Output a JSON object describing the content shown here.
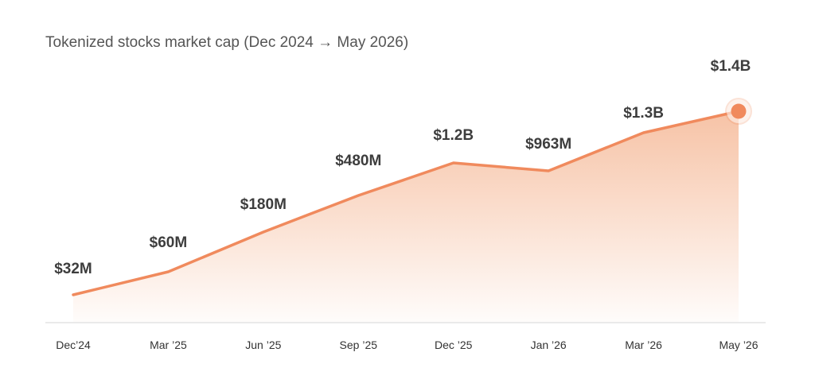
{
  "chart_data": {
    "type": "area",
    "title": "Tokenized stocks market cap (Dec 2024 → May 2026)",
    "xlabel": "",
    "ylabel": "",
    "categories": [
      "Dec’24",
      "Mar ’25",
      "Jun ’25",
      "Sep ’25",
      "Dec ’25",
      "Jan ’26",
      "Mar ’26",
      "May ’26"
    ],
    "series": [
      {
        "values": [
          32,
          60,
          180,
          480,
          1200,
          963,
          1300,
          1400
        ],
        "value_labels": [
          "$32M",
          "$60M",
          "$180M",
          "$480M",
          "$1.2B",
          "$963M",
          "$1.3B",
          "$1.4B"
        ],
        "unit": "USD millions"
      }
    ],
    "highlight_last_point": true,
    "grid": false,
    "legend": "none",
    "colors": {
      "line": "#F08A5D",
      "fill": "#F5B896",
      "marker": "#F08A5D",
      "axis": "#E4E4E4",
      "label": "#3D3D3D",
      "title": "#555555"
    }
  }
}
